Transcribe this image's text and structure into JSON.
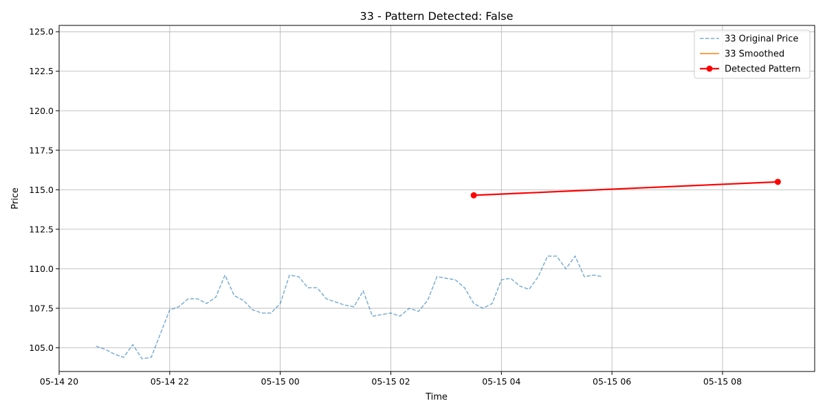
{
  "chart_data": {
    "type": "line",
    "title": "33 - Pattern Detected: False",
    "xlabel": "Time",
    "ylabel": "Price",
    "ylim": [
      103.5,
      125.4
    ],
    "xlim": [
      "2024-05-14 20:00",
      "2024-05-15 09:40"
    ],
    "grid": true,
    "legend_position": "top-right",
    "y_ticks": [
      "105.0",
      "107.5",
      "110.0",
      "112.5",
      "115.0",
      "117.5",
      "120.0",
      "122.5",
      "125.0"
    ],
    "x_ticks": [
      {
        "t": "2024-05-14 20:00",
        "label": "05-14 20"
      },
      {
        "t": "2024-05-14 22:00",
        "label": "05-14 22"
      },
      {
        "t": "2024-05-15 00:00",
        "label": "05-15 00"
      },
      {
        "t": "2024-05-15 02:00",
        "label": "05-15 02"
      },
      {
        "t": "2024-05-15 04:00",
        "label": "05-15 04"
      },
      {
        "t": "2024-05-15 06:00",
        "label": "05-15 06"
      },
      {
        "t": "2024-05-15 08:00",
        "label": "05-15 08"
      }
    ],
    "series": [
      {
        "name": "33 Original Price",
        "style": "dashed",
        "color": "#1f77b4",
        "points": [
          [
            "2024-05-14 20:40",
            105.1
          ],
          [
            "2024-05-14 20:50",
            104.9
          ],
          [
            "2024-05-14 21:00",
            104.6
          ],
          [
            "2024-05-14 21:10",
            104.4
          ],
          [
            "2024-05-14 21:20",
            105.2
          ],
          [
            "2024-05-14 21:30",
            104.3
          ],
          [
            "2024-05-14 21:40",
            104.4
          ],
          [
            "2024-05-14 21:50",
            105.9
          ],
          [
            "2024-05-14 22:00",
            107.4
          ],
          [
            "2024-05-14 22:10",
            107.6
          ],
          [
            "2024-05-14 22:20",
            108.1
          ],
          [
            "2024-05-14 22:30",
            108.1
          ],
          [
            "2024-05-14 22:40",
            107.8
          ],
          [
            "2024-05-14 22:50",
            108.2
          ],
          [
            "2024-05-14 23:00",
            109.6
          ],
          [
            "2024-05-14 23:10",
            108.3
          ],
          [
            "2024-05-14 23:20",
            108.0
          ],
          [
            "2024-05-14 23:30",
            107.4
          ],
          [
            "2024-05-14 23:40",
            107.2
          ],
          [
            "2024-05-14 23:50",
            107.2
          ],
          [
            "2024-05-15 00:00",
            107.8
          ],
          [
            "2024-05-15 00:10",
            109.6
          ],
          [
            "2024-05-15 00:20",
            109.5
          ],
          [
            "2024-05-15 00:30",
            108.8
          ],
          [
            "2024-05-15 00:40",
            108.8
          ],
          [
            "2024-05-15 00:50",
            108.1
          ],
          [
            "2024-05-15 01:00",
            107.9
          ],
          [
            "2024-05-15 01:10",
            107.7
          ],
          [
            "2024-05-15 01:20",
            107.6
          ],
          [
            "2024-05-15 01:30",
            108.6
          ],
          [
            "2024-05-15 01:40",
            107.0
          ],
          [
            "2024-05-15 01:50",
            107.1
          ],
          [
            "2024-05-15 02:00",
            107.2
          ],
          [
            "2024-05-15 02:10",
            107.0
          ],
          [
            "2024-05-15 02:20",
            107.5
          ],
          [
            "2024-05-15 02:30",
            107.3
          ],
          [
            "2024-05-15 02:40",
            108.0
          ],
          [
            "2024-05-15 02:50",
            109.5
          ],
          [
            "2024-05-15 03:00",
            109.4
          ],
          [
            "2024-05-15 03:10",
            109.3
          ],
          [
            "2024-05-15 03:20",
            108.8
          ],
          [
            "2024-05-15 03:30",
            107.8
          ],
          [
            "2024-05-15 03:40",
            107.5
          ],
          [
            "2024-05-15 03:50",
            107.8
          ],
          [
            "2024-05-15 04:00",
            109.3
          ],
          [
            "2024-05-15 04:10",
            109.4
          ],
          [
            "2024-05-15 04:20",
            108.9
          ],
          [
            "2024-05-15 04:30",
            108.7
          ],
          [
            "2024-05-15 04:40",
            109.5
          ],
          [
            "2024-05-15 04:50",
            110.8
          ],
          [
            "2024-05-15 05:00",
            110.8
          ],
          [
            "2024-05-15 05:10",
            110.0
          ],
          [
            "2024-05-15 05:20",
            110.8
          ],
          [
            "2024-05-15 05:30",
            109.5
          ],
          [
            "2024-05-15 05:40",
            109.6
          ],
          [
            "2024-05-15 05:50",
            109.5
          ]
        ]
      },
      {
        "name": "33 Smoothed",
        "style": "solid",
        "color": "#ff7f0e",
        "points": []
      },
      {
        "name": "Detected Pattern",
        "style": "solid-markers",
        "color": "#ff0000",
        "points": [
          [
            "2024-05-15 03:30",
            114.65
          ],
          [
            "2024-05-15 09:00",
            115.5
          ]
        ]
      }
    ]
  }
}
